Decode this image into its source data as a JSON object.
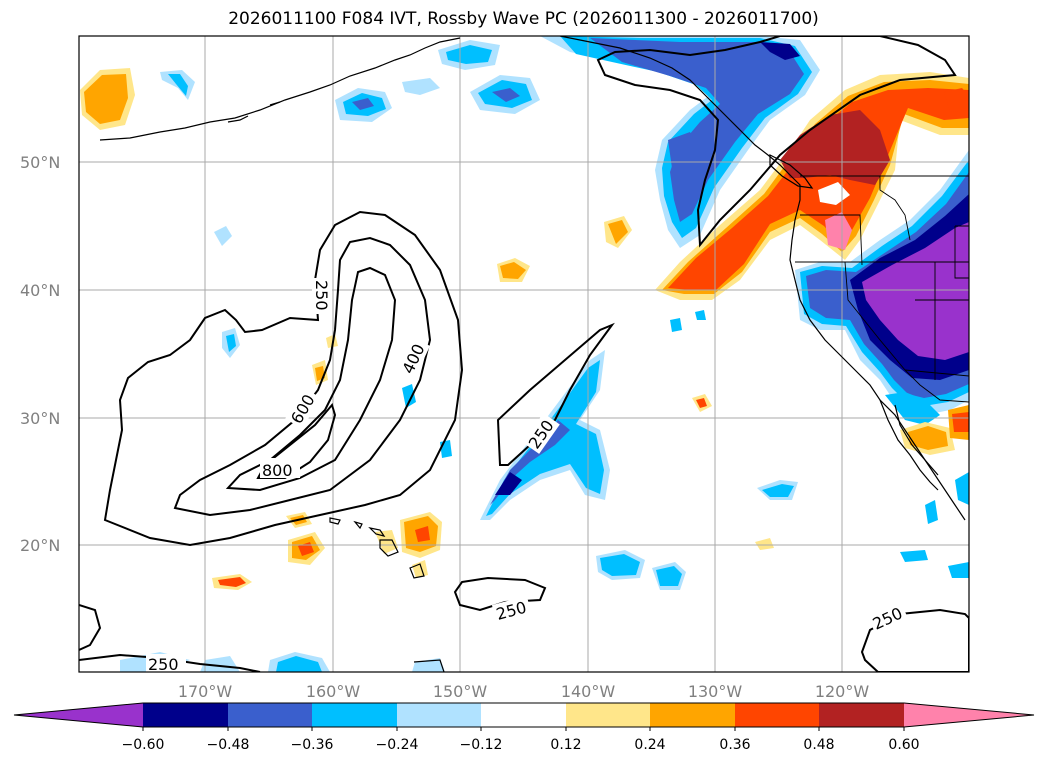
{
  "title": "2026011100 F084 IVT, Rossby Wave PC (2026011300 - 2026011700)",
  "latitudes": [
    "50°N",
    "40°N",
    "30°N",
    "20°N"
  ],
  "longitudes": [
    "170°W",
    "160°W",
    "150°W",
    "140°W",
    "130°W",
    "120°W"
  ],
  "colorbar": {
    "ticks": [
      "−0.60",
      "−0.48",
      "−0.36",
      "−0.24",
      "−0.12",
      "0.12",
      "0.24",
      "0.36",
      "0.48",
      "0.60"
    ],
    "colors": {
      "below": "#9932CC",
      "n060": "#00008B",
      "n048": "#3A5FCD",
      "n036": "#00BFFF",
      "n024": "#B0E2FF",
      "zero": "#FFFFFF",
      "p012": "#FFE68A",
      "p024": "#FFA500",
      "p036": "#FF4500",
      "p048": "#B22222",
      "above": "#FF82AB"
    }
  },
  "contours": {
    "c800": "800",
    "c600": "600",
    "c400": "400",
    "c250_core": "250",
    "c250_mid": "250",
    "c250_south": "250",
    "c250_east": "250",
    "c250_sw": "250"
  }
}
